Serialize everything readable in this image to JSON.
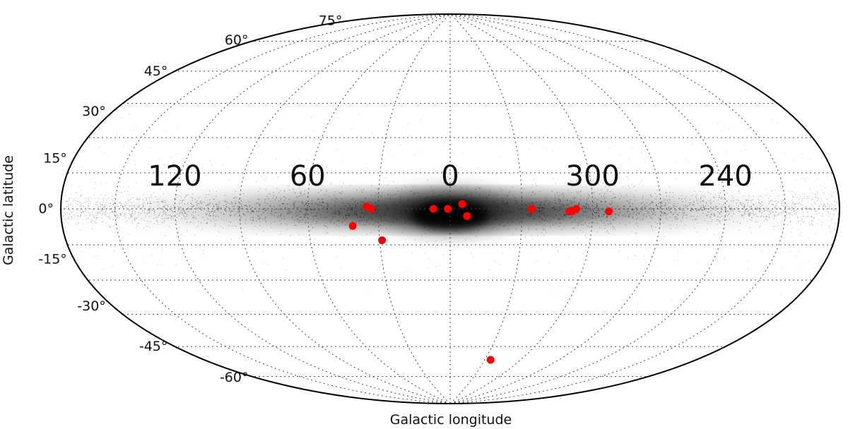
{
  "chart_data": {
    "type": "scatter",
    "projection": "aitoff-hammer",
    "xlabel": "Galactic longitude",
    "ylabel": "Galactic latitude",
    "lon_tick_labels": [
      "120",
      "60",
      "0",
      "300",
      "240"
    ],
    "lon_tick_values": [
      120,
      60,
      0,
      -60,
      -120
    ],
    "lat_tick_labels": [
      "75°",
      "60°",
      "45°",
      "30°",
      "15°",
      "0°",
      "-15°",
      "-30°",
      "-45°",
      "-60°"
    ],
    "lat_tick_values": [
      75,
      60,
      45,
      30,
      15,
      0,
      -15,
      -30,
      -45,
      -60
    ],
    "grid": true,
    "background": "grayscale stellar density map concentrated along the Galactic plane",
    "series": [
      {
        "color": "#ff0000",
        "points": [
          {
            "lon": 35,
            "lat": 1
          },
          {
            "lon": 33,
            "lat": 0
          },
          {
            "lon": 41,
            "lat": -7
          },
          {
            "lon": 29,
            "lat": -13
          },
          {
            "lon": 7,
            "lat": 0
          },
          {
            "lon": 1,
            "lat": 0
          },
          {
            "lon": -5,
            "lat": 2
          },
          {
            "lon": -7,
            "lat": -3
          },
          {
            "lon": -34,
            "lat": 0
          },
          {
            "lon": -50,
            "lat": -1
          },
          {
            "lon": -51,
            "lat": -1
          },
          {
            "lon": -53,
            "lat": 0
          },
          {
            "lon": -67,
            "lat": -1
          },
          {
            "lon": -35,
            "lat": -66
          }
        ]
      }
    ],
    "colors": {
      "points": "#ff0000",
      "frame": "#000000",
      "grid": "#444444"
    }
  }
}
